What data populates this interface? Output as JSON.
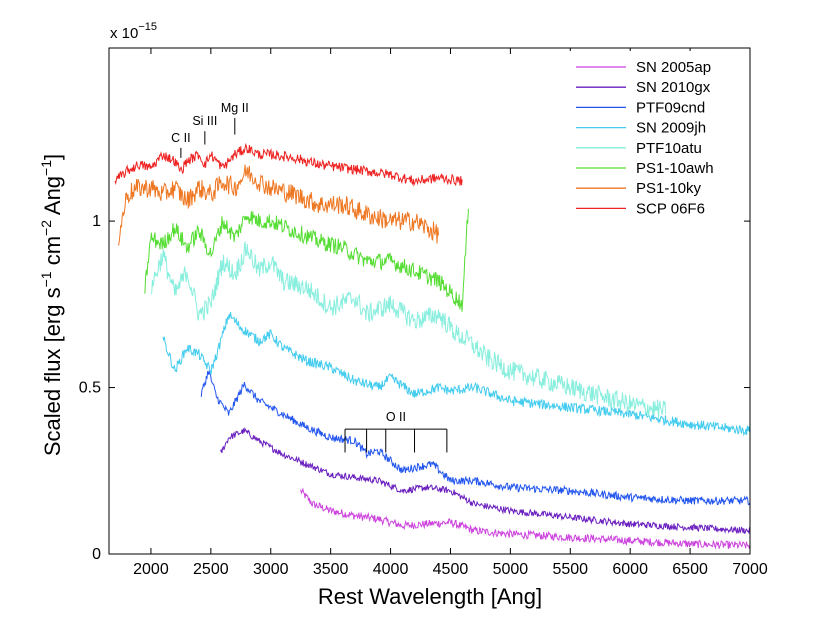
{
  "chart_data": {
    "type": "line",
    "title": "",
    "xlabel": "Rest Wavelength [Ang]",
    "ylabel": "Scaled flux [erg s",
    "ylabel_parts": {
      "base": "Scaled flux [erg s",
      "exp1": "−1",
      "mid": " cm",
      "exp2": "−2",
      "unit": " Ang",
      "exp3": "−1",
      "close": "]"
    },
    "y_multiplier": {
      "base": "x 10",
      "exponent": "−15"
    },
    "xlim": [
      1650,
      7000
    ],
    "ylim": [
      0,
      1.52
    ],
    "xticks": [
      2000,
      2500,
      3000,
      3500,
      4000,
      4500,
      5000,
      5500,
      6000,
      6500,
      7000
    ],
    "xtick_labels": [
      "2000",
      "2500",
      "3000",
      "3500",
      "4000",
      "4500",
      "5000",
      "5500",
      "6000",
      "6500",
      "7000"
    ],
    "yticks": [
      0,
      0.5,
      1
    ],
    "ytick_labels": [
      "0",
      "0.5",
      "1"
    ],
    "legend_position": "top-right",
    "series": [
      {
        "name": "SN 2005ap",
        "color": "#cc44dd",
        "x": [
          3250,
          3350,
          3500,
          3700,
          3900,
          4100,
          4300,
          4500,
          4700,
          5000,
          5500,
          6000,
          6500,
          7000
        ],
        "y": [
          0.19,
          0.15,
          0.13,
          0.115,
          0.105,
          0.085,
          0.09,
          0.095,
          0.07,
          0.06,
          0.05,
          0.04,
          0.03,
          0.025
        ]
      },
      {
        "name": "SN 2010gx",
        "color": "#6a1fbf",
        "x": [
          2580,
          2650,
          2780,
          2900,
          3100,
          3300,
          3500,
          3700,
          3900,
          4100,
          4300,
          4500,
          4700,
          5000,
          5500,
          6000,
          6500,
          7000
        ],
        "y": [
          0.3,
          0.35,
          0.37,
          0.34,
          0.3,
          0.27,
          0.24,
          0.23,
          0.22,
          0.19,
          0.2,
          0.19,
          0.15,
          0.13,
          0.11,
          0.09,
          0.08,
          0.07
        ]
      },
      {
        "name": "PTF09cnd",
        "color": "#2255ee",
        "x": [
          2420,
          2480,
          2550,
          2650,
          2780,
          2900,
          3100,
          3300,
          3500,
          3700,
          3800,
          3900,
          4100,
          4200,
          4350,
          4500,
          4700,
          5000,
          5500,
          6000,
          6500,
          7000
        ],
        "y": [
          0.48,
          0.55,
          0.47,
          0.42,
          0.51,
          0.46,
          0.42,
          0.38,
          0.35,
          0.34,
          0.3,
          0.31,
          0.25,
          0.26,
          0.27,
          0.22,
          0.22,
          0.2,
          0.19,
          0.17,
          0.16,
          0.16
        ]
      },
      {
        "name": "SN 2009jh",
        "color": "#44ccee",
        "x": [
          2100,
          2200,
          2300,
          2400,
          2500,
          2550,
          2650,
          2750,
          2900,
          3000,
          3100,
          3300,
          3500,
          3700,
          3900,
          4000,
          4200,
          4400,
          4500,
          4700,
          5000,
          5500,
          6000,
          6500,
          7000
        ],
        "y": [
          0.65,
          0.55,
          0.62,
          0.6,
          0.55,
          0.6,
          0.72,
          0.68,
          0.64,
          0.66,
          0.62,
          0.58,
          0.56,
          0.52,
          0.5,
          0.53,
          0.48,
          0.5,
          0.49,
          0.5,
          0.46,
          0.44,
          0.42,
          0.39,
          0.37
        ]
      },
      {
        "name": "PTF10atu",
        "color": "#88eedd",
        "x": [
          2000,
          2100,
          2200,
          2300,
          2400,
          2500,
          2600,
          2700,
          2800,
          2900,
          3000,
          3100,
          3300,
          3500,
          3700,
          3800,
          4000,
          4200,
          4400,
          4550,
          4650,
          4800,
          5000,
          5500,
          6000,
          6300
        ],
        "y": [
          0.8,
          0.9,
          0.78,
          0.85,
          0.72,
          0.75,
          0.88,
          0.84,
          0.92,
          0.85,
          0.88,
          0.82,
          0.8,
          0.74,
          0.77,
          0.72,
          0.75,
          0.7,
          0.72,
          0.66,
          0.64,
          0.59,
          0.55,
          0.5,
          0.45,
          0.43
        ]
      },
      {
        "name": "PS1-10awh",
        "color": "#55dd33",
        "x": [
          1950,
          2000,
          2100,
          2200,
          2300,
          2400,
          2500,
          2600,
          2700,
          2800,
          2900,
          3000,
          3200,
          3400,
          3600,
          3800,
          4000,
          4200,
          4400,
          4600,
          4650
        ],
        "y": [
          0.8,
          0.95,
          0.93,
          0.98,
          0.92,
          0.97,
          0.9,
          1.0,
          0.95,
          1.02,
          1.0,
          1.0,
          0.97,
          0.94,
          0.92,
          0.88,
          0.88,
          0.85,
          0.82,
          0.75,
          1.05
        ]
      },
      {
        "name": "PS1-10ky",
        "color": "#ee7722",
        "x": [
          1730,
          1800,
          1900,
          2000,
          2100,
          2200,
          2300,
          2400,
          2500,
          2600,
          2700,
          2800,
          2900,
          3000,
          3200,
          3400,
          3600,
          3800,
          4000,
          4200,
          4400
        ],
        "y": [
          0.95,
          1.08,
          1.1,
          1.1,
          1.08,
          1.1,
          1.06,
          1.1,
          1.08,
          1.12,
          1.1,
          1.15,
          1.12,
          1.1,
          1.08,
          1.05,
          1.05,
          1.02,
          1.0,
          1.0,
          0.96
        ]
      },
      {
        "name": "SCP 06F6",
        "color": "#ee2222",
        "x": [
          1700,
          1800,
          1900,
          2000,
          2100,
          2200,
          2250,
          2300,
          2400,
          2450,
          2500,
          2600,
          2700,
          2800,
          2900,
          3000,
          3200,
          3400,
          3600,
          3800,
          4000,
          4200,
          4400,
          4600
        ],
        "y": [
          1.12,
          1.15,
          1.17,
          1.16,
          1.2,
          1.18,
          1.15,
          1.18,
          1.2,
          1.17,
          1.2,
          1.16,
          1.2,
          1.22,
          1.2,
          1.2,
          1.19,
          1.17,
          1.16,
          1.15,
          1.14,
          1.12,
          1.13,
          1.12
        ]
      }
    ],
    "annotations": [
      {
        "label": "C II",
        "x": 2250,
        "tick_top": 1.22,
        "tick_bottom": 1.19
      },
      {
        "label": "Si III",
        "x": 2450,
        "tick_top": 1.27,
        "tick_bottom": 1.23
      },
      {
        "label": "Mg II",
        "x": 2700,
        "tick_top": 1.31,
        "tick_bottom": 1.26
      }
    ],
    "oii_bracket": {
      "label": "O II",
      "lines_x": [
        3620,
        3800,
        3960,
        4200,
        4470
      ],
      "y_top": 0.375,
      "y_bottom": 0.305
    }
  }
}
